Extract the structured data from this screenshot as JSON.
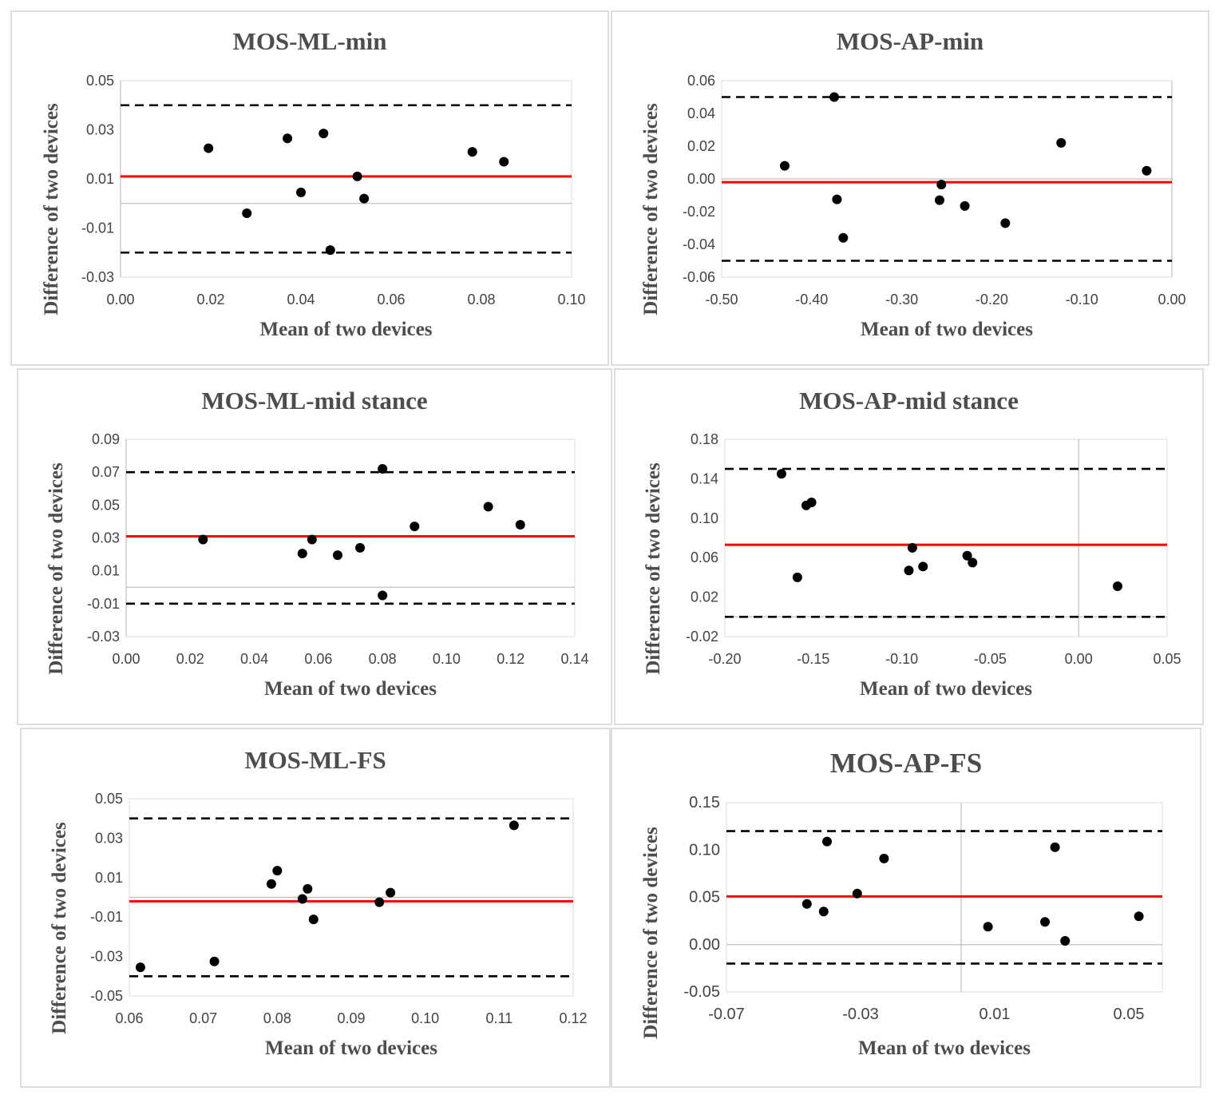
{
  "chart_data": [
    {
      "type": "scatter",
      "title": "MOS-ML-min",
      "xlabel": "Mean of two devices",
      "ylabel": "Difference of two devices",
      "xlim": [
        0,
        0.1
      ],
      "ylim": [
        -0.03,
        0.05
      ],
      "xticks": [
        "0.00",
        "0.02",
        "0.04",
        "0.06",
        "0.08",
        "0.10"
      ],
      "yticks": [
        "0.05",
        "0.03",
        "0.01",
        "-0.01",
        "-0.03"
      ],
      "mean_difference": 0.011,
      "upper_loa": 0.04,
      "lower_loa": -0.02,
      "points": [
        [
          0.0195,
          0.0225
        ],
        [
          0.028,
          -0.004
        ],
        [
          0.037,
          0.0265
        ],
        [
          0.04,
          0.0045
        ],
        [
          0.045,
          0.0285
        ],
        [
          0.0465,
          -0.019
        ],
        [
          0.0525,
          0.011
        ],
        [
          0.054,
          0.002
        ],
        [
          0.078,
          0.021
        ],
        [
          0.085,
          0.017
        ]
      ]
    },
    {
      "type": "scatter",
      "title": "MOS-AP-min",
      "xlabel": "Mean of two devices",
      "ylabel": "Difference of two devices",
      "xlim": [
        -0.5,
        0
      ],
      "ylim": [
        -0.06,
        0.06
      ],
      "xticks": [
        "-0.50",
        "-0.40",
        "-0.30",
        "-0.20",
        "-0.10",
        "0.00"
      ],
      "yticks": [
        "0.06",
        "0.04",
        "0.02",
        "0.00",
        "-0.02",
        "-0.04",
        "-0.06"
      ],
      "mean_difference": -0.002,
      "upper_loa": 0.05,
      "lower_loa": -0.05,
      "points": [
        [
          -0.43,
          0.008
        ],
        [
          -0.375,
          0.05
        ],
        [
          -0.372,
          -0.0125
        ],
        [
          -0.365,
          -0.036
        ],
        [
          -0.258,
          -0.013
        ],
        [
          -0.256,
          -0.0035
        ],
        [
          -0.23,
          -0.0165
        ],
        [
          -0.185,
          -0.027
        ],
        [
          -0.123,
          0.022
        ],
        [
          -0.028,
          0.005
        ]
      ]
    },
    {
      "type": "scatter",
      "title": "MOS-ML-mid stance",
      "xlabel": "Mean of two devices",
      "ylabel": "Difference of two devices",
      "xlim": [
        0,
        0.14
      ],
      "ylim": [
        -0.03,
        0.09
      ],
      "xticks": [
        "0.00",
        "0.02",
        "0.04",
        "0.06",
        "0.08",
        "0.10",
        "0.12",
        "0.14"
      ],
      "yticks": [
        "0.09",
        "0.07",
        "0.05",
        "0.03",
        "0.01",
        "-0.01",
        "-0.03"
      ],
      "mean_difference": 0.031,
      "upper_loa": 0.07,
      "lower_loa": -0.01,
      "points": [
        [
          0.024,
          0.029
        ],
        [
          0.055,
          0.0205
        ],
        [
          0.058,
          0.029
        ],
        [
          0.066,
          0.0195
        ],
        [
          0.073,
          0.024
        ],
        [
          0.08,
          0.072
        ],
        [
          0.08,
          -0.005
        ],
        [
          0.09,
          0.037
        ],
        [
          0.113,
          0.049
        ],
        [
          0.123,
          0.038
        ]
      ]
    },
    {
      "type": "scatter",
      "title": "MOS-AP-mid stance",
      "xlabel": "Mean of two devices",
      "ylabel": "Difference of two devices",
      "xlim": [
        -0.2,
        0.05
      ],
      "ylim": [
        -0.02,
        0.18
      ],
      "xticks": [
        "-0.20",
        "-0.15",
        "-0.10",
        "-0.05",
        "0.00",
        "0.05"
      ],
      "yticks": [
        "0.18",
        "0.14",
        "0.10",
        "0.06",
        "0.02",
        "-0.02"
      ],
      "mean_difference": 0.073,
      "upper_loa": 0.15,
      "lower_loa": 0.0,
      "points": [
        [
          -0.168,
          0.145
        ],
        [
          -0.159,
          0.04
        ],
        [
          -0.154,
          0.113
        ],
        [
          -0.151,
          0.116
        ],
        [
          -0.096,
          0.047
        ],
        [
          -0.094,
          0.07
        ],
        [
          -0.088,
          0.051
        ],
        [
          -0.063,
          0.062
        ],
        [
          -0.06,
          0.055
        ],
        [
          0.022,
          0.031
        ]
      ]
    },
    {
      "type": "scatter",
      "title": "MOS-ML-FS",
      "xlabel": "Mean of two devices",
      "ylabel": "Difference of two devices",
      "xlim": [
        0.06,
        0.12
      ],
      "ylim": [
        -0.05,
        0.05
      ],
      "xticks": [
        "0.06",
        "0.07",
        "0.08",
        "0.09",
        "0.10",
        "0.11",
        "0.12"
      ],
      "yticks": [
        "0.05",
        "0.03",
        "0.01",
        "-0.01",
        "-0.03",
        "-0.05"
      ],
      "mean_difference": -0.002,
      "upper_loa": 0.04,
      "lower_loa": -0.04,
      "points": [
        [
          0.0615,
          -0.0355
        ],
        [
          0.0715,
          -0.0325
        ],
        [
          0.0792,
          0.0068
        ],
        [
          0.08,
          0.0135
        ],
        [
          0.0834,
          -0.0008
        ],
        [
          0.0841,
          0.0043
        ],
        [
          0.0849,
          -0.0112
        ],
        [
          0.0938,
          -0.0025
        ],
        [
          0.0953,
          0.0024
        ],
        [
          0.112,
          0.0365
        ]
      ]
    },
    {
      "type": "scatter",
      "title": "MOS-AP-FS",
      "xlabel": "Mean of two devices",
      "ylabel": "Difference of two devices",
      "xlim": [
        -0.07,
        0.06
      ],
      "ylim": [
        -0.05,
        0.15
      ],
      "xticks": [
        "-0.07",
        "-0.03",
        "0.01",
        "0.05"
      ],
      "yticks": [
        "0.15",
        "0.10",
        "0.05",
        "0.00",
        "-0.05"
      ],
      "mean_difference": 0.051,
      "upper_loa": 0.12,
      "lower_loa": -0.02,
      "points": [
        [
          -0.046,
          0.043
        ],
        [
          -0.04,
          0.109
        ],
        [
          -0.041,
          0.035
        ],
        [
          -0.031,
          0.054
        ],
        [
          -0.023,
          0.091
        ],
        [
          0.008,
          0.019
        ],
        [
          0.025,
          0.024
        ],
        [
          0.028,
          0.103
        ],
        [
          0.031,
          0.004
        ],
        [
          0.053,
          0.03
        ]
      ]
    }
  ]
}
